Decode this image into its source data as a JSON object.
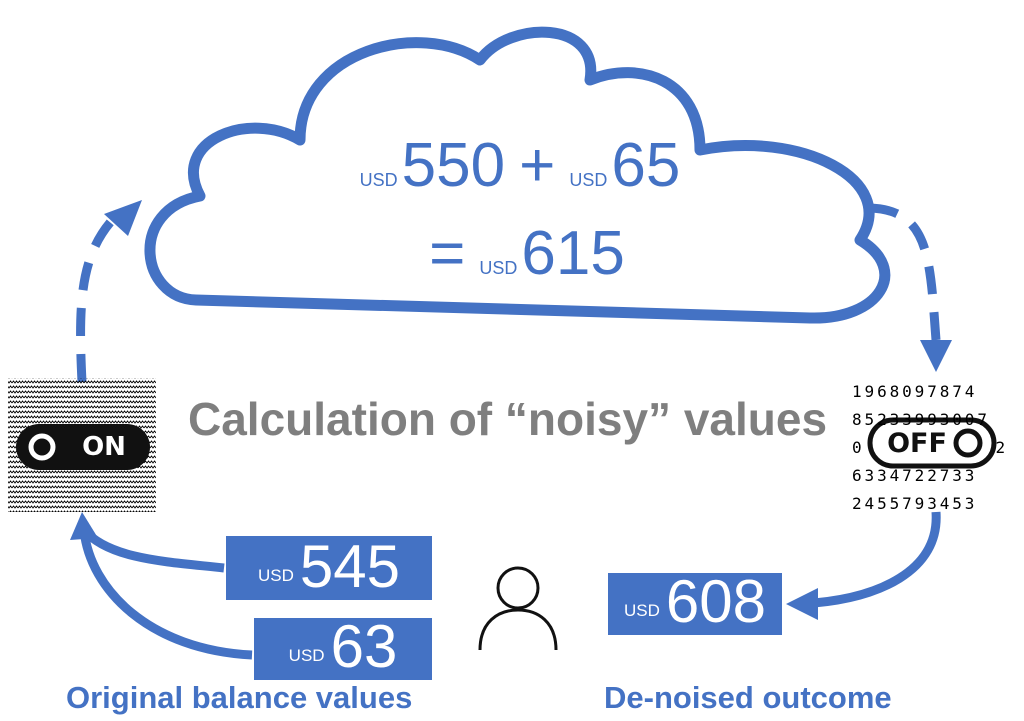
{
  "cloud": {
    "line1": {
      "usd_a": "USD",
      "value_a": "550",
      "operator": "+",
      "usd_b": "USD",
      "value_b": "65"
    },
    "line2": {
      "equals": "=",
      "usd": "USD",
      "value": "615"
    }
  },
  "title": "Calculation of “noisy” values",
  "toggle_on": {
    "label": "ON"
  },
  "toggle_off": {
    "label": "OFF"
  },
  "noise_digits": [
    "1968097874",
    "8523399300",
    "0",
    "2",
    "6334722733",
    "2455793453"
  ],
  "noise_row2_tail": "7",
  "input_boxes": [
    {
      "currency": "USD",
      "value": "545"
    },
    {
      "currency": "USD",
      "value": "63"
    }
  ],
  "output_box": {
    "currency": "USD",
    "value": "608"
  },
  "captions": {
    "left": "Original balance values",
    "right": "De-noised outcome"
  },
  "colors": {
    "accent": "#4472C4",
    "title_gray": "#7F7F7F"
  },
  "icons": [
    "user-icon",
    "cloud-icon",
    "noise-pattern"
  ]
}
